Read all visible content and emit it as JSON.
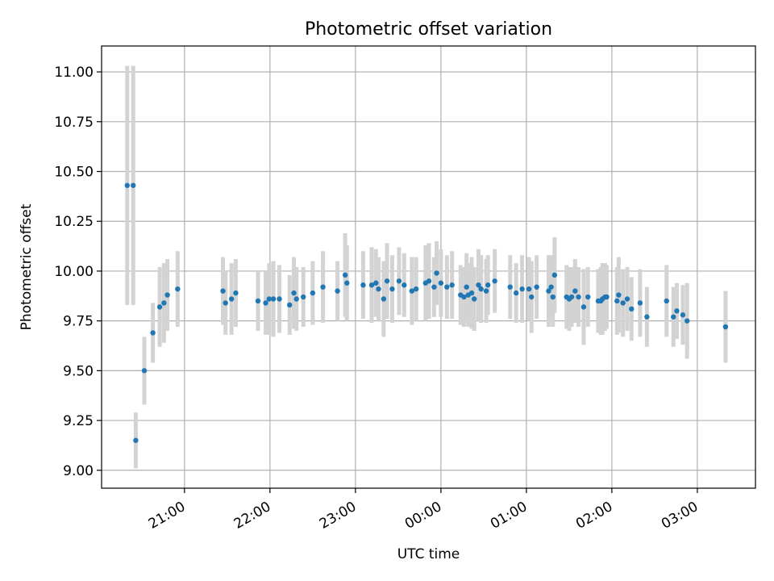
{
  "chart_data": {
    "type": "scatter",
    "title": "Photometric offset variation",
    "xlabel": "UTC time",
    "ylabel": "Photometric offset",
    "x_unit": "hours",
    "x_ticks": [
      {
        "t": 21,
        "label": "21:00"
      },
      {
        "t": 22,
        "label": "22:00"
      },
      {
        "t": 23,
        "label": "23:00"
      },
      {
        "t": 24,
        "label": "00:00"
      },
      {
        "t": 25,
        "label": "01:00"
      },
      {
        "t": 26,
        "label": "02:00"
      },
      {
        "t": 27,
        "label": "03:00"
      }
    ],
    "y_ticks": [
      "9.00",
      "9.25",
      "9.50",
      "9.75",
      "10.00",
      "10.25",
      "10.50",
      "10.75",
      "11.00"
    ],
    "xlim": [
      20.03,
      27.68
    ],
    "ylim": [
      8.91,
      11.13
    ],
    "grid": true,
    "colors": {
      "points": "#1f77b4",
      "errorbars": "#d3d3d3",
      "grid": "#b0b0b0"
    },
    "points": [
      [
        20.33,
        10.43,
        0.6
      ],
      [
        20.4,
        10.43,
        0.6
      ],
      [
        20.43,
        9.15,
        0.14
      ],
      [
        20.53,
        9.5,
        0.17
      ],
      [
        20.63,
        9.69,
        0.15
      ],
      [
        20.71,
        9.82,
        0.2
      ],
      [
        20.76,
        9.84,
        0.2
      ],
      [
        20.8,
        9.88,
        0.18
      ],
      [
        20.92,
        9.91,
        0.19
      ],
      [
        21.45,
        9.9,
        0.17
      ],
      [
        21.48,
        9.84,
        0.16
      ],
      [
        21.55,
        9.86,
        0.18
      ],
      [
        21.6,
        9.89,
        0.17
      ],
      [
        21.86,
        9.85,
        0.15
      ],
      [
        21.95,
        9.84,
        0.16
      ],
      [
        21.99,
        9.86,
        0.18
      ],
      [
        22.04,
        9.86,
        0.19
      ],
      [
        22.11,
        9.86,
        0.17
      ],
      [
        22.23,
        9.83,
        0.15
      ],
      [
        22.28,
        9.89,
        0.18
      ],
      [
        22.31,
        9.86,
        0.16
      ],
      [
        22.39,
        9.87,
        0.15
      ],
      [
        22.5,
        9.89,
        0.16
      ],
      [
        22.62,
        9.92,
        0.18
      ],
      [
        22.79,
        9.9,
        0.15
      ],
      [
        22.88,
        9.98,
        0.21
      ],
      [
        22.9,
        9.94,
        0.19
      ],
      [
        23.09,
        9.93,
        0.17
      ],
      [
        23.19,
        9.93,
        0.19
      ],
      [
        23.24,
        9.94,
        0.17
      ],
      [
        23.27,
        9.91,
        0.16
      ],
      [
        23.33,
        9.86,
        0.19
      ],
      [
        23.37,
        9.95,
        0.19
      ],
      [
        23.43,
        9.91,
        0.17
      ],
      [
        23.51,
        9.95,
        0.17
      ],
      [
        23.57,
        9.93,
        0.16
      ],
      [
        23.66,
        9.9,
        0.17
      ],
      [
        23.71,
        9.91,
        0.16
      ],
      [
        23.82,
        9.94,
        0.19
      ],
      [
        23.86,
        9.95,
        0.19
      ],
      [
        23.92,
        9.92,
        0.15
      ],
      [
        23.95,
        9.99,
        0.16
      ],
      [
        24.0,
        9.94,
        0.17
      ],
      [
        24.07,
        9.92,
        0.16
      ],
      [
        24.13,
        9.93,
        0.17
      ],
      [
        24.23,
        9.88,
        0.15
      ],
      [
        24.27,
        9.87,
        0.15
      ],
      [
        24.3,
        9.92,
        0.17
      ],
      [
        24.32,
        9.88,
        0.16
      ],
      [
        24.36,
        9.89,
        0.18
      ],
      [
        24.39,
        9.86,
        0.16
      ],
      [
        24.44,
        9.93,
        0.18
      ],
      [
        24.47,
        9.91,
        0.17
      ],
      [
        24.53,
        9.9,
        0.16
      ],
      [
        24.55,
        9.93,
        0.15
      ],
      [
        24.63,
        9.95,
        0.16
      ],
      [
        24.81,
        9.92,
        0.16
      ],
      [
        24.88,
        9.89,
        0.15
      ],
      [
        24.95,
        9.91,
        0.17
      ],
      [
        25.03,
        9.91,
        0.16
      ],
      [
        25.06,
        9.87,
        0.18
      ],
      [
        25.12,
        9.92,
        0.16
      ],
      [
        25.26,
        9.9,
        0.18
      ],
      [
        25.29,
        9.92,
        0.16
      ],
      [
        25.31,
        9.87,
        0.15
      ],
      [
        25.33,
        9.98,
        0.19
      ],
      [
        25.47,
        9.87,
        0.16
      ],
      [
        25.5,
        9.86,
        0.16
      ],
      [
        25.53,
        9.87,
        0.15
      ],
      [
        25.57,
        9.9,
        0.16
      ],
      [
        25.61,
        9.87,
        0.15
      ],
      [
        25.67,
        9.82,
        0.19
      ],
      [
        25.72,
        9.87,
        0.15
      ],
      [
        25.84,
        9.85,
        0.16
      ],
      [
        25.87,
        9.85,
        0.17
      ],
      [
        25.89,
        9.86,
        0.18
      ],
      [
        25.92,
        9.87,
        0.17
      ],
      [
        25.94,
        9.87,
        0.16
      ],
      [
        26.06,
        9.85,
        0.17
      ],
      [
        26.08,
        9.88,
        0.19
      ],
      [
        26.13,
        9.84,
        0.17
      ],
      [
        26.18,
        9.86,
        0.16
      ],
      [
        26.23,
        9.81,
        0.16
      ],
      [
        26.33,
        9.84,
        0.17
      ],
      [
        26.41,
        9.77,
        0.15
      ],
      [
        26.64,
        9.85,
        0.18
      ],
      [
        26.72,
        9.77,
        0.15
      ],
      [
        26.76,
        9.8,
        0.14
      ],
      [
        26.83,
        9.78,
        0.15
      ],
      [
        26.88,
        9.75,
        0.19
      ],
      [
        27.33,
        9.72,
        0.18
      ]
    ]
  }
}
